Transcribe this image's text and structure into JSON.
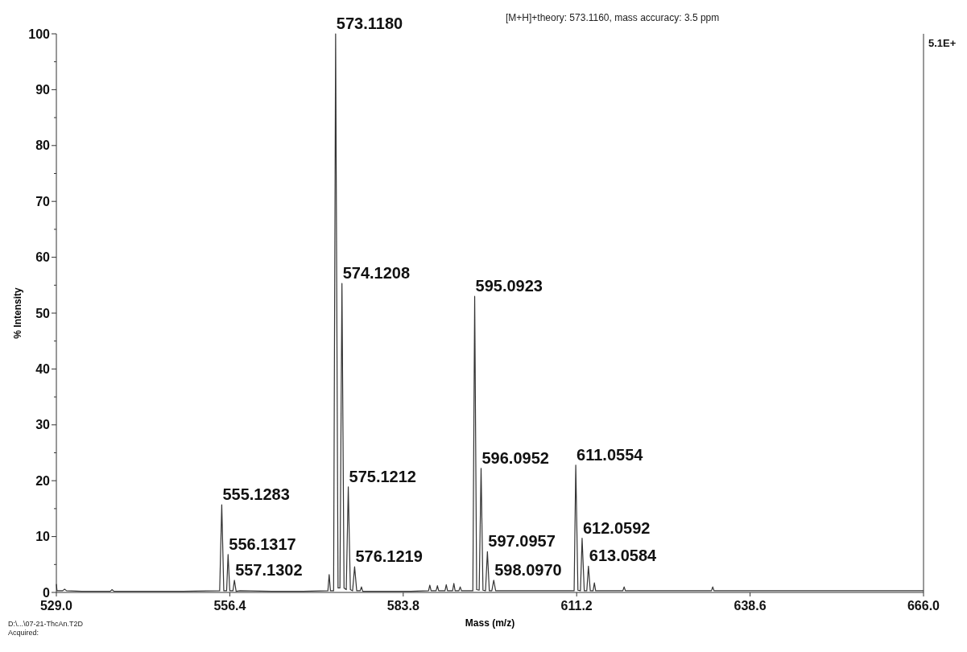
{
  "chart_data": {
    "type": "line",
    "title": "[M+H]+theory:  573.1160, mass accuracy: 3.5 ppm",
    "xlabel": "Mass (m/z)",
    "ylabel": "% Intensity",
    "xlim": [
      529.0,
      666.0
    ],
    "xticks": [
      {
        "value": 529.0,
        "label": "529.0"
      },
      {
        "value": 556.4,
        "label": "556.4"
      },
      {
        "value": 583.8,
        "label": "583.8"
      },
      {
        "value": 611.2,
        "label": "611.2"
      },
      {
        "value": 638.6,
        "label": "638.6"
      },
      {
        "value": 666.0,
        "label": "666.0"
      }
    ],
    "ylim": [
      0,
      100
    ],
    "yticks": [
      0,
      {
        "value": 5,
        "label": null
      },
      10,
      {
        "value": 15,
        "label": null
      },
      20,
      {
        "value": 25,
        "label": null
      },
      30,
      {
        "value": 35,
        "label": null
      },
      40,
      {
        "value": 45,
        "label": null
      },
      50,
      {
        "value": 55,
        "label": null
      },
      60,
      {
        "value": 65,
        "label": null
      },
      70,
      {
        "value": 75,
        "label": null
      },
      80,
      {
        "value": 85,
        "label": null
      },
      90,
      {
        "value": 95,
        "label": null
      },
      100
    ],
    "grid": false,
    "marker": "none",
    "line_style": "solid",
    "series": [
      {
        "color": "#333333",
        "x": [
          529.0,
          529.1,
          529.3,
          530.0,
          530.3,
          530.6,
          533.0,
          537.5,
          537.8,
          538.1,
          545.0,
          549.0,
          554.8,
          555.13,
          555.45,
          555.9,
          556.13,
          556.4,
          556.9,
          557.13,
          557.4,
          558.0,
          563.0,
          568.0,
          571.9,
          572.1,
          572.3,
          572.8,
          573.12,
          573.5,
          573.8,
          574.12,
          574.45,
          574.8,
          575.12,
          575.45,
          575.8,
          576.12,
          576.45,
          577.0,
          577.2,
          577.4,
          580.0,
          585.0,
          587.8,
          588.0,
          588.2,
          589.0,
          589.2,
          589.4,
          590.4,
          590.6,
          590.8,
          591.6,
          591.8,
          592.0,
          592.6,
          592.8,
          593.0,
          594.8,
          595.09,
          595.4,
          595.8,
          596.1,
          596.4,
          596.8,
          597.1,
          597.4,
          597.8,
          598.1,
          598.4,
          600.0,
          605.0,
          610.8,
          611.06,
          611.4,
          611.8,
          612.06,
          612.4,
          612.8,
          613.06,
          613.35,
          613.8,
          614.0,
          614.2,
          616.0,
          618.5,
          618.7,
          618.9,
          625.0,
          630.0,
          632.5,
          632.7,
          632.9,
          640.0,
          650.0,
          660.0,
          666.0
        ],
        "values": [
          1.5,
          0.3,
          0.3,
          0.3,
          0.6,
          0.3,
          0.2,
          0.2,
          0.5,
          0.2,
          0.2,
          0.2,
          0.3,
          15.7,
          0.3,
          0.3,
          6.8,
          0.3,
          0.3,
          2.2,
          0.2,
          0.3,
          0.2,
          0.2,
          0.3,
          3.2,
          0.3,
          0.3,
          100,
          0.8,
          0.8,
          55.3,
          0.8,
          0.5,
          18.9,
          0.5,
          0.3,
          4.6,
          0.3,
          0.3,
          1.0,
          0.2,
          0.2,
          0.2,
          0.3,
          1.3,
          0.3,
          0.3,
          1.2,
          0.3,
          0.3,
          1.4,
          0.3,
          0.3,
          1.6,
          0.3,
          0.3,
          1.0,
          0.3,
          0.3,
          53,
          0.5,
          0.4,
          22.2,
          0.4,
          0.3,
          7.3,
          0.3,
          0.3,
          2.2,
          0.3,
          0.3,
          0.3,
          0.3,
          22.8,
          0.4,
          0.3,
          9.7,
          0.3,
          0.3,
          4.7,
          0.3,
          0.3,
          1.7,
          0.3,
          0.3,
          0.3,
          1.0,
          0.3,
          0.3,
          0.3,
          0.3,
          1.0,
          0.3,
          0.3,
          0.3,
          0.3,
          0.3
        ]
      }
    ],
    "annotations": [
      {
        "text": "573.1180",
        "x": 573.12,
        "y": 100
      },
      {
        "text": "574.1208",
        "x": 574.12,
        "y": 55.3
      },
      {
        "text": "595.0923",
        "x": 595.09,
        "y": 53
      },
      {
        "text": "555.1283",
        "x": 555.13,
        "y": 15.7
      },
      {
        "text": "556.1317",
        "x": 556.13,
        "y": 6.8
      },
      {
        "text": "557.1302",
        "x": 557.13,
        "y": 2.2
      },
      {
        "text": "575.1212",
        "x": 575.12,
        "y": 18.9
      },
      {
        "text": "576.1219",
        "x": 576.12,
        "y": 4.6
      },
      {
        "text": "596.0952",
        "x": 596.1,
        "y": 22.2
      },
      {
        "text": "597.0957",
        "x": 597.1,
        "y": 7.3
      },
      {
        "text": "598.0970",
        "x": 598.1,
        "y": 2.2
      },
      {
        "text": "611.0554",
        "x": 611.06,
        "y": 22.8
      },
      {
        "text": "612.0592",
        "x": 612.06,
        "y": 9.7
      },
      {
        "text": "613.0584",
        "x": 613.06,
        "y": 4.7
      },
      "5.1E+",
      "D:\\...\\07-21-ThcAn.T2D",
      "Acquired:"
    ]
  }
}
